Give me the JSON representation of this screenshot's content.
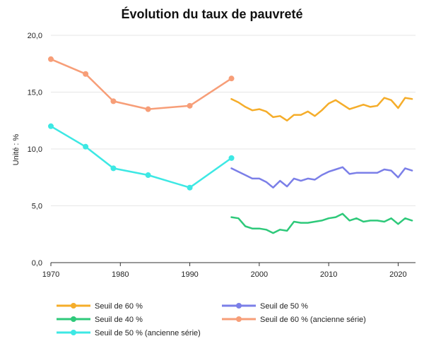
{
  "chart_data": {
    "type": "line",
    "title": "Évolution du taux de pauvreté",
    "ylabel": "Unité : %",
    "xlabel": "",
    "xlim": [
      1970,
      2022.5
    ],
    "ylim": [
      0,
      20
    ],
    "x_ticks": [
      1970,
      1980,
      1990,
      2000,
      2010,
      2020
    ],
    "y_ticks": [
      0,
      5,
      10,
      15,
      20
    ],
    "y_tick_labels": [
      "0,0",
      "5,0",
      "10,0",
      "15,0",
      "20,0"
    ],
    "grid": "horizontal",
    "legend_position": "bottom",
    "series": [
      {
        "name": "Seuil de 60 %",
        "color": "#f5ad2a",
        "markers": false,
        "x": [
          1996,
          1997,
          1998,
          1999,
          2000,
          2001,
          2002,
          2003,
          2004,
          2005,
          2006,
          2007,
          2008,
          2009,
          2010,
          2011,
          2012,
          2013,
          2014,
          2015,
          2016,
          2017,
          2018,
          2019,
          2020,
          2021,
          2022
        ],
        "y": [
          14.4,
          14.1,
          13.7,
          13.4,
          13.5,
          13.3,
          12.8,
          12.9,
          12.5,
          13.0,
          13.0,
          13.3,
          12.9,
          13.4,
          14.0,
          14.3,
          13.9,
          13.5,
          13.7,
          13.9,
          13.7,
          13.8,
          14.5,
          14.3,
          13.6,
          14.5,
          14.4
        ]
      },
      {
        "name": "Seuil de 50 %",
        "color": "#7b7fe8",
        "markers": false,
        "x": [
          1996,
          1997,
          1998,
          1999,
          2000,
          2001,
          2002,
          2003,
          2004,
          2005,
          2006,
          2007,
          2008,
          2009,
          2010,
          2011,
          2012,
          2013,
          2014,
          2015,
          2016,
          2017,
          2018,
          2019,
          2020,
          2021,
          2022
        ],
        "y": [
          8.3,
          8.0,
          7.7,
          7.4,
          7.4,
          7.1,
          6.6,
          7.2,
          6.7,
          7.4,
          7.2,
          7.4,
          7.3,
          7.7,
          8.0,
          8.2,
          8.4,
          7.8,
          7.9,
          7.9,
          7.9,
          7.9,
          8.2,
          8.1,
          7.5,
          8.3,
          8.1
        ]
      },
      {
        "name": "Seuil de 40 %",
        "color": "#2ec97a",
        "markers": false,
        "x": [
          1996,
          1997,
          1998,
          1999,
          2000,
          2001,
          2002,
          2003,
          2004,
          2005,
          2006,
          2007,
          2008,
          2009,
          2010,
          2011,
          2012,
          2013,
          2014,
          2015,
          2016,
          2017,
          2018,
          2019,
          2020,
          2021,
          2022
        ],
        "y": [
          4.0,
          3.9,
          3.2,
          3.0,
          3.0,
          2.9,
          2.6,
          2.9,
          2.8,
          3.6,
          3.5,
          3.5,
          3.6,
          3.7,
          3.9,
          4.0,
          4.3,
          3.7,
          3.9,
          3.6,
          3.7,
          3.7,
          3.6,
          3.9,
          3.4,
          3.9,
          3.7
        ]
      },
      {
        "name": "Seuil de 60 % (ancienne série)",
        "color": "#f79e78",
        "markers": true,
        "x": [
          1970,
          1975,
          1979,
          1984,
          1990,
          1996
        ],
        "y": [
          17.9,
          16.6,
          14.2,
          13.5,
          13.8,
          16.2
        ]
      },
      {
        "name": "Seuil de 50 % (ancienne série)",
        "color": "#3de8e4",
        "markers": true,
        "x": [
          1970,
          1975,
          1979,
          1984,
          1990,
          1996
        ],
        "y": [
          12.0,
          10.2,
          8.3,
          7.7,
          6.6,
          9.2
        ]
      }
    ]
  }
}
